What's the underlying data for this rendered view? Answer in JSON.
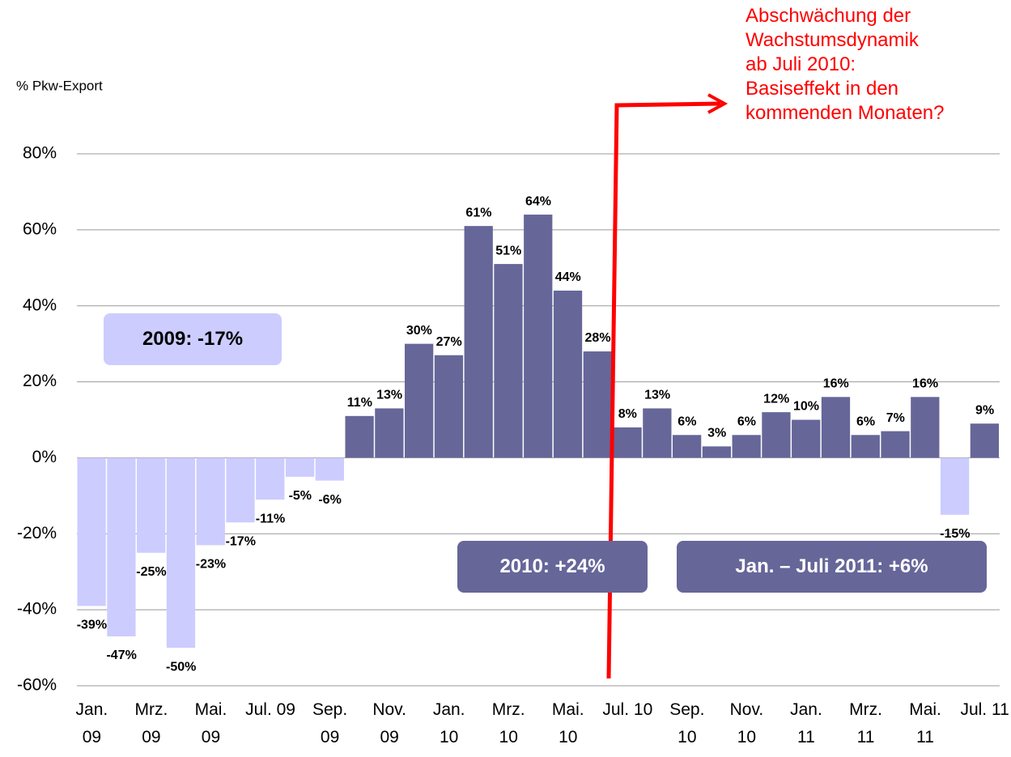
{
  "chart_data": {
    "type": "bar",
    "y_label": "% Pkw-Export",
    "categories": [
      "Jan. 09",
      null,
      "Mrz. 09",
      null,
      "Mai. 09",
      null,
      "Jul. 09",
      null,
      "Sep. 09",
      null,
      "Nov. 09",
      null,
      "Jan. 10",
      null,
      "Mrz. 10",
      null,
      "Mai. 10",
      null,
      "Jul. 10",
      null,
      "Sep. 10",
      null,
      "Nov. 10",
      null,
      "Jan. 11",
      null,
      "Mrz. 11",
      null,
      "Mai. 11",
      null,
      "Jul. 11"
    ],
    "values": [
      -39,
      -47,
      -25,
      -50,
      -23,
      -17,
      -11,
      -5,
      -6,
      11,
      13,
      30,
      27,
      61,
      51,
      64,
      44,
      28,
      8,
      13,
      6,
      3,
      6,
      12,
      10,
      16,
      6,
      7,
      16,
      -15,
      9
    ],
    "value_labels": [
      "-39%",
      "-47%",
      "-25%",
      "-50%",
      "-23%",
      "-17%",
      "-11%",
      "-5%",
      "-6%",
      "11%",
      "13%",
      "30%",
      "27%",
      "61%",
      "51%",
      "64%",
      "44%",
      "28%",
      "8%",
      "13%",
      "6%",
      "3%",
      "6%",
      "12%",
      "10%",
      "16%",
      "6%",
      "7%",
      "16%",
      "-15%",
      "9%"
    ],
    "color": "#666699",
    "negative_color": "#ccccff",
    "ylim": [
      -60,
      80
    ],
    "yticks": [
      {
        "value": -60,
        "label": "-60%"
      },
      {
        "value": -40,
        "label": "-40%"
      },
      {
        "value": -20,
        "label": "-20%"
      },
      {
        "value": 0,
        "label": "0%"
      },
      {
        "value": 20,
        "label": "20%"
      },
      {
        "value": 40,
        "label": "40%"
      },
      {
        "value": 60,
        "label": "60%"
      },
      {
        "value": 80,
        "label": "80%"
      }
    ],
    "grid": true,
    "annotations": [
      "2009: -17%",
      "2010:  +24%",
      "Jan. – Juli 2011:  +6%"
    ],
    "callout": [
      "Abschwächung der",
      "Wachstumsdynamik",
      "ab Juli 2010:",
      "Basiseffekt in den",
      "kommenden Monaten?"
    ]
  }
}
